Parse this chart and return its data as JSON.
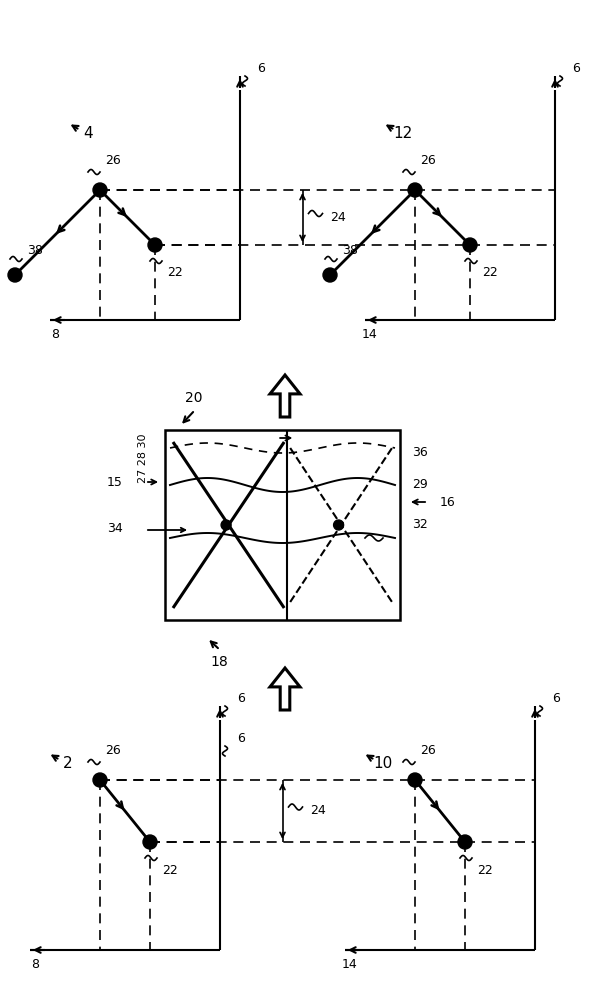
{
  "bg_color": "#ffffff",
  "line_color": "#000000",
  "figsize": [
    6.04,
    10.0
  ],
  "dpi": 100,
  "panels": {
    "top_left": {
      "label": "4",
      "x_label": "8",
      "y_label": "6"
    },
    "top_right": {
      "label": "12",
      "x_label": "14",
      "y_label": "6"
    },
    "bot_left": {
      "label": "2",
      "x_label": "8",
      "y_label": "6"
    },
    "bot_right": {
      "label": "10",
      "x_label": "14",
      "y_label": "6"
    }
  }
}
